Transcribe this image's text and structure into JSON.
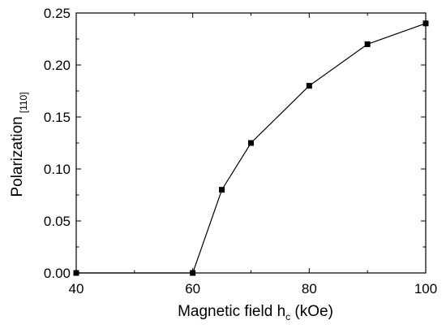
{
  "chart_data": {
    "type": "line",
    "x": [
      40,
      60,
      65,
      70,
      80,
      90,
      100
    ],
    "series": [
      {
        "values": [
          0.0,
          0.0,
          0.08,
          0.125,
          0.18,
          0.22,
          0.24
        ]
      }
    ],
    "xlabel": {
      "main": "Magnetic field h",
      "sub": "c",
      "unit": " (kOe)"
    },
    "ylabel": {
      "main": "Polarization",
      "sub": "[110]"
    },
    "xlim": [
      40,
      100
    ],
    "ylim": [
      0,
      0.25
    ],
    "xticks": [
      "40",
      "60",
      "80",
      "100"
    ],
    "yticks": [
      "0.00",
      "0.05",
      "0.10",
      "0.15",
      "0.20",
      "0.25"
    ],
    "marker": "square",
    "grid": false,
    "colors": {
      "line": "#000000",
      "marker": "#000000"
    }
  }
}
